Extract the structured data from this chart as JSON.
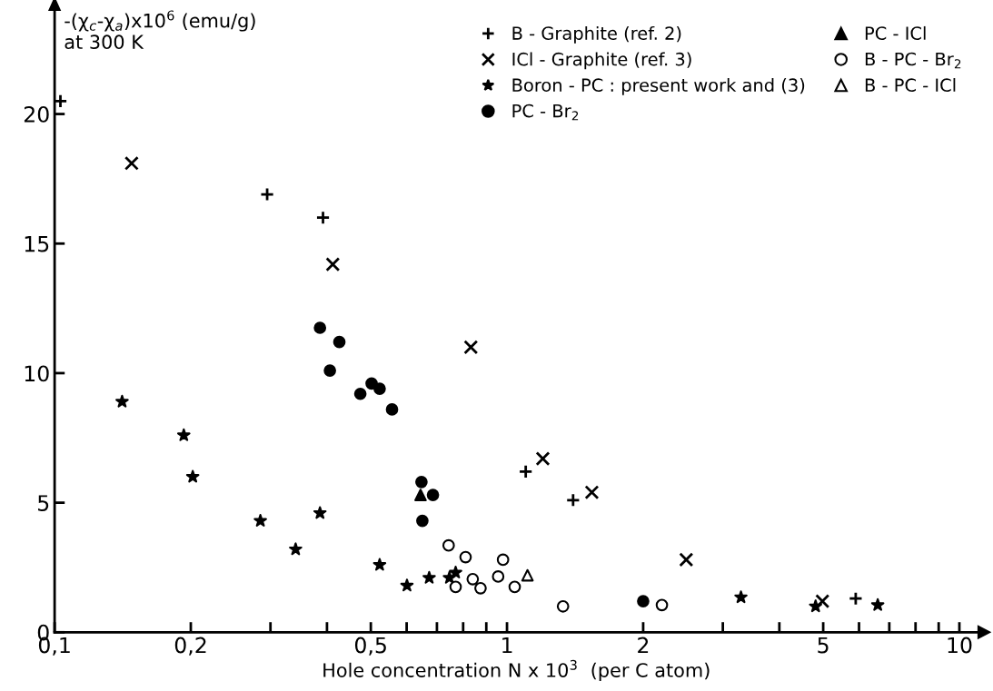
{
  "chart_data": {
    "type": "scatter",
    "ylabel": "-(χ$_{c}$-χ$_{a}$)x10$^{6}$ (emu/g)\nat 300 K",
    "xlabel": "Hole concentration N x 10$^{3}$  (per C atom)",
    "log": "x",
    "grid": false,
    "legend": "top right",
    "xlim": [
      0.1,
      11
    ],
    "xticks": [
      {
        "value": 0.1,
        "label": "0,1"
      },
      {
        "value": 0.2,
        "label": "0,2"
      },
      {
        "value": 0.3,
        "label": null
      },
      {
        "value": 0.4,
        "label": null
      },
      {
        "value": 0.5,
        "label": "0,5"
      },
      {
        "value": 0.6,
        "label": null
      },
      {
        "value": 0.7,
        "label": null
      },
      {
        "value": 0.8,
        "label": null
      },
      {
        "value": 0.9,
        "label": null
      },
      1,
      2,
      {
        "value": 3,
        "label": null
      },
      {
        "value": 4,
        "label": null
      },
      5,
      {
        "value": 6,
        "label": null
      },
      {
        "value": 7,
        "label": null
      },
      {
        "value": 8,
        "label": null
      },
      {
        "value": 9,
        "label": null
      },
      10
    ],
    "ylim": [
      0,
      24
    ],
    "yticks": [
      0,
      5,
      10,
      15,
      20
    ],
    "series": [
      {
        "name": "B - Graphite (ref. 2)",
        "color": "#000000",
        "marker": "plus",
        "x": [
          0.103,
          0.295,
          0.392,
          1.1,
          1.4,
          5.9
        ],
        "values": [
          20.5,
          16.9,
          16.0,
          6.2,
          5.1,
          1.3
        ]
      },
      {
        "name": "ICl - Graphite (ref. 3)",
        "color": "#000000",
        "marker": "x",
        "x": [
          0.148,
          0.412,
          0.832,
          1.2,
          1.54,
          2.49,
          4.98
        ],
        "values": [
          18.1,
          14.2,
          11.0,
          6.7,
          5.4,
          2.8,
          1.2
        ]
      },
      {
        "name": "Boron - PC : present work and (3)",
        "color": "#000000",
        "marker": "star",
        "x": [
          0.141,
          0.193,
          0.202,
          0.285,
          0.341,
          0.386,
          0.523,
          0.601,
          0.673,
          0.746,
          0.77,
          3.29,
          4.81,
          6.6
        ],
        "values": [
          8.9,
          7.6,
          6.0,
          4.3,
          3.2,
          4.6,
          2.6,
          1.8,
          2.1,
          2.1,
          2.3,
          1.35,
          1.0,
          1.05
        ]
      },
      {
        "name": "PC - Br$_{2}$",
        "color": "#000000",
        "marker": "circle",
        "x": [
          0.386,
          0.426,
          0.406,
          0.474,
          0.502,
          0.523,
          0.557,
          0.647,
          0.686,
          0.65,
          2.0
        ],
        "values": [
          11.75,
          11.2,
          10.1,
          9.2,
          9.6,
          9.4,
          8.6,
          5.8,
          5.3,
          4.3,
          1.2
        ]
      },
      {
        "name": "PC - ICl",
        "color": "#000000",
        "marker": "triangle",
        "x": [
          0.644
        ],
        "values": [
          5.3
        ]
      },
      {
        "name": "B - PC - Br$_{2}$",
        "color": "#000000",
        "marker": "circle-open",
        "x": [
          0.743,
          0.81,
          0.98,
          0.77,
          0.84,
          0.874,
          0.956,
          1.04,
          1.33,
          2.2
        ],
        "values": [
          3.35,
          2.9,
          2.8,
          1.75,
          2.05,
          1.7,
          2.15,
          1.75,
          1.0,
          1.05
        ]
      },
      {
        "name": "B - PC - ICl",
        "color": "#000000",
        "marker": "triangle-open",
        "x": [
          1.11
        ],
        "values": [
          2.2
        ]
      }
    ]
  }
}
